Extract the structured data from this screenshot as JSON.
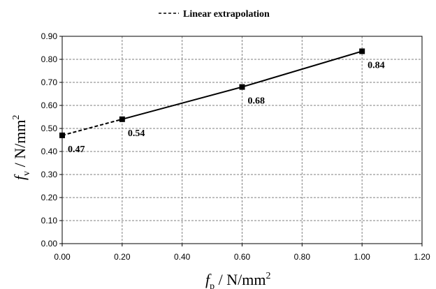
{
  "chart_data": {
    "type": "line",
    "x_axis": {
      "label_symbol": "f",
      "label_subscript": "p",
      "label_unit": " / N/mm",
      "label_unit_exponent": "2",
      "range": [
        0,
        1.2
      ],
      "tick_values": [
        0,
        0.2,
        0.4,
        0.6,
        0.8,
        1.0,
        1.2
      ],
      "tick_labels": [
        "0.00",
        "0.20",
        "0.40",
        "0.60",
        "0.80",
        "1.00",
        "1.20"
      ]
    },
    "y_axis": {
      "label_symbol": "f",
      "label_subscript": "v",
      "label_unit": " / N/mm",
      "label_unit_exponent": "2",
      "range": [
        0,
        0.9
      ],
      "tick_values": [
        0,
        0.1,
        0.2,
        0.3,
        0.4,
        0.5,
        0.6,
        0.7,
        0.8,
        0.9
      ],
      "tick_labels": [
        "0.00",
        "0.10",
        "0.20",
        "0.30",
        "0.40",
        "0.50",
        "0.60",
        "0.70",
        "0.80",
        "0.90"
      ]
    },
    "grid": true,
    "grid_style": "dashed",
    "legend": {
      "position": "top-center",
      "entries": [
        {
          "label": "Linear extrapolation",
          "line_style": "dashed"
        }
      ]
    },
    "points": [
      {
        "x": 0.0,
        "y": 0.47,
        "label": "0.47"
      },
      {
        "x": 0.2,
        "y": 0.54,
        "label": "0.54"
      },
      {
        "x": 0.6,
        "y": 0.68,
        "label": "0.68"
      },
      {
        "x": 1.0,
        "y": 0.835,
        "label": "0.84"
      }
    ],
    "solid_segment": {
      "from_x": 0.2,
      "to_x": 1.0
    },
    "dashed_segment": {
      "from_x": 0.0,
      "to_x": 0.2
    },
    "colors": {
      "line": "#000000",
      "marker": "#000000",
      "grid": "#7f7f7f"
    }
  }
}
